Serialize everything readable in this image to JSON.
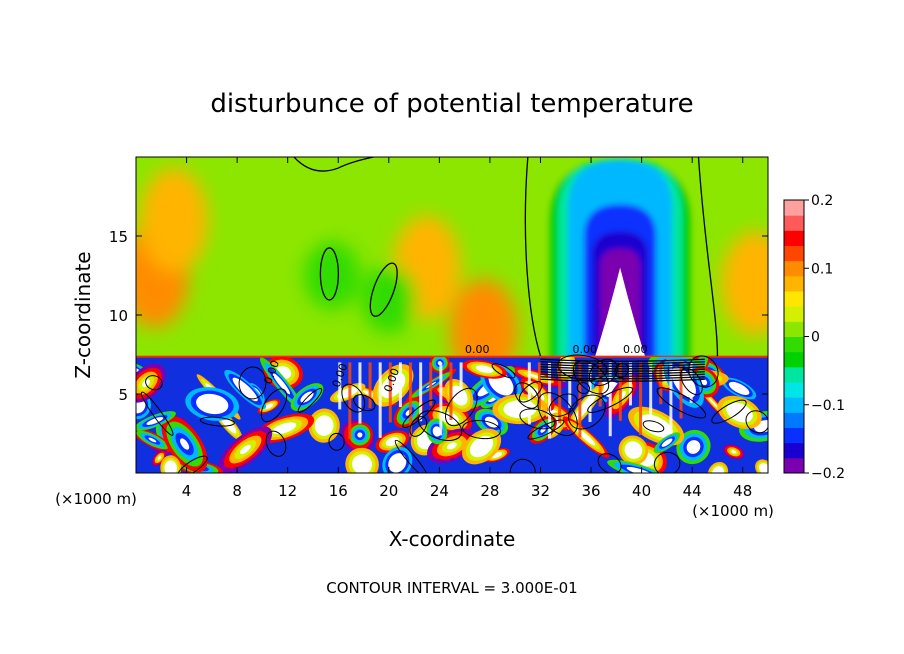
{
  "chart_data": {
    "type": "heatmap",
    "title": "disturbunce of potential temperature",
    "xlabel": "X-coordinate",
    "ylabel": "Z-coordinate",
    "x_unit": "(×1000 m)",
    "x_unit_right": "(×1000 m)",
    "xlim": [
      0,
      50
    ],
    "ylim": [
      0,
      20
    ],
    "x_ticks": [
      4,
      8,
      12,
      16,
      20,
      24,
      28,
      32,
      36,
      40,
      44,
      48
    ],
    "x_tick_labels": [
      "4",
      "8",
      "12",
      "16",
      "20",
      "24",
      "28",
      "32",
      "36",
      "40",
      "44",
      "48"
    ],
    "y_ticks": [
      5,
      10,
      15
    ],
    "y_tick_labels": [
      "5",
      "10",
      "15"
    ],
    "colorbar": {
      "min": -0.2,
      "max": 0.2,
      "ticks": [
        0.2,
        0.1,
        0,
        -0.1,
        -0.2
      ],
      "tick_labels": [
        "0.2",
        "0.1",
        "0",
        "−0.1",
        "−0.2"
      ],
      "colors": [
        "#7a00b0",
        "#1a00d0",
        "#0a30ff",
        "#0078ff",
        "#00b8ff",
        "#00e6e6",
        "#00e6a0",
        "#00d200",
        "#32dc00",
        "#8ce600",
        "#d2f000",
        "#ffe600",
        "#ffb400",
        "#ff8c00",
        "#ff4600",
        "#ff0000",
        "#ff5a5a",
        "#ffa0a0"
      ]
    },
    "contour_labels": [
      "0.00",
      "0.00",
      "0.00",
      "0.00",
      "0.00",
      "0.00"
    ],
    "footnote": "CONTOUR INTERVAL = 3.000E-01",
    "field": {
      "inversion_height": 7.3,
      "background_value": 0.02,
      "upper_warm_patches": [
        {
          "x": 1.5,
          "z": 12.5,
          "value": 0.1
        },
        {
          "x": 3.0,
          "z": 16.0,
          "value": 0.07
        },
        {
          "x": 27.5,
          "z": 9.0,
          "value": 0.09
        },
        {
          "x": 23.0,
          "z": 13.0,
          "value": 0.07
        },
        {
          "x": 49.0,
          "z": 12.0,
          "value": 0.08
        }
      ],
      "upper_cool_patches": [
        {
          "x": 15.5,
          "z": 12.5,
          "value": -0.02
        },
        {
          "x": 20.0,
          "z": 11.0,
          "value": -0.02
        },
        {
          "x": 12.0,
          "z": 17.0,
          "value": 0.0
        }
      ],
      "cold_plume": {
        "x_center": 38.3,
        "z_core": 13.0,
        "value_min": -0.2,
        "x_range": [
          32,
          44
        ]
      },
      "boundary_layer_range": [
        -0.2,
        0.2
      ]
    }
  }
}
